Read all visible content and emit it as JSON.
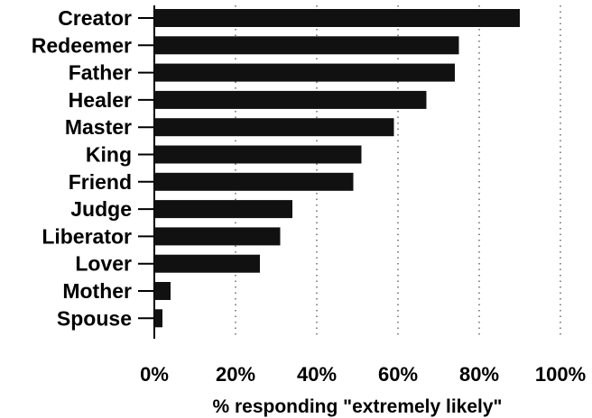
{
  "chart_data": {
    "type": "bar",
    "orientation": "horizontal",
    "categories": [
      "Creator",
      "Redeemer",
      "Father",
      "Healer",
      "Master",
      "King",
      "Friend",
      "Judge",
      "Liberator",
      "Lover",
      "Mother",
      "Spouse"
    ],
    "values": [
      90,
      75,
      74,
      67,
      59,
      51,
      49,
      34,
      31,
      26,
      4,
      2
    ],
    "xlabel": "% responding \"extremely likely\"",
    "ylabel": "",
    "xlim": [
      0,
      100
    ],
    "xticks": [
      "0%",
      "20%",
      "40%",
      "60%",
      "80%",
      "100%"
    ],
    "xtick_values": [
      0,
      20,
      40,
      60,
      80,
      100
    ],
    "grid": "vertical dotted",
    "bar_color": "#111111"
  }
}
